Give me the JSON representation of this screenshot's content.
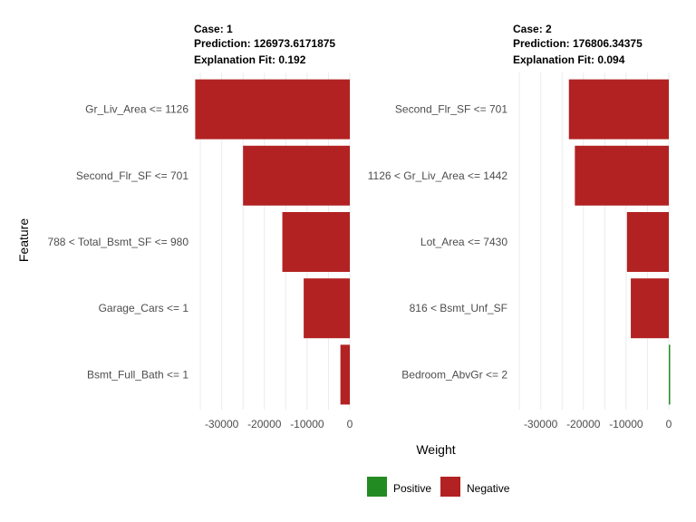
{
  "colors": {
    "positive": "#228B22",
    "negative": "#B22222",
    "grid": "#ebebeb",
    "tick_text": "#4d4d4d"
  },
  "legend": {
    "items": [
      {
        "label": "Positive",
        "color_key": "positive"
      },
      {
        "label": "Negative",
        "color_key": "negative"
      }
    ],
    "placement": "bottom"
  },
  "chart_data": [
    {
      "type": "bar",
      "orientation": "horizontal",
      "case_label": "Case: 1",
      "prediction_label": "Prediction: 126973.6171875",
      "fit_label": "Explanation Fit: 0.192",
      "xlabel": "Weight",
      "ylabel": "Feature",
      "xlim": [
        -36500,
        0
      ],
      "xticks": [
        -30000,
        -20000,
        -10000,
        0
      ],
      "xtick_labels": [
        "-30000",
        "-20000",
        "-10000",
        "0"
      ],
      "grid": true,
      "categories": [
        "Gr_Liv_Area <= 1126",
        "Second_Flr_SF <= 701",
        "788 < Total_Bsmt_SF <= 980",
        "Garage_Cars <= 1",
        "Bsmt_Full_Bath <= 1"
      ],
      "values": [
        -36200,
        -25000,
        -15800,
        -10800,
        -2200
      ],
      "signs": [
        "Negative",
        "Negative",
        "Negative",
        "Negative",
        "Negative"
      ]
    },
    {
      "type": "bar",
      "orientation": "horizontal",
      "case_label": "Case: 2",
      "prediction_label": "Prediction: 176806.34375",
      "fit_label": "Explanation Fit: 0.094",
      "xlabel": "Weight",
      "ylabel": "Feature",
      "xlim": [
        -36500,
        0
      ],
      "xticks": [
        -30000,
        -20000,
        -10000,
        0
      ],
      "xtick_labels": [
        "-30000",
        "-20000",
        "-10000",
        "0"
      ],
      "grid": true,
      "categories": [
        "Second_Flr_SF <= 701",
        "1126 < Gr_Liv_Area <= 1442",
        "Lot_Area <= 7430",
        "816 < Bsmt_Unf_SF",
        "Bedroom_AbvGr <= 2"
      ],
      "values": [
        -23400,
        -22000,
        -9800,
        -8900,
        200
      ],
      "signs": [
        "Negative",
        "Negative",
        "Negative",
        "Negative",
        "Positive"
      ]
    }
  ]
}
